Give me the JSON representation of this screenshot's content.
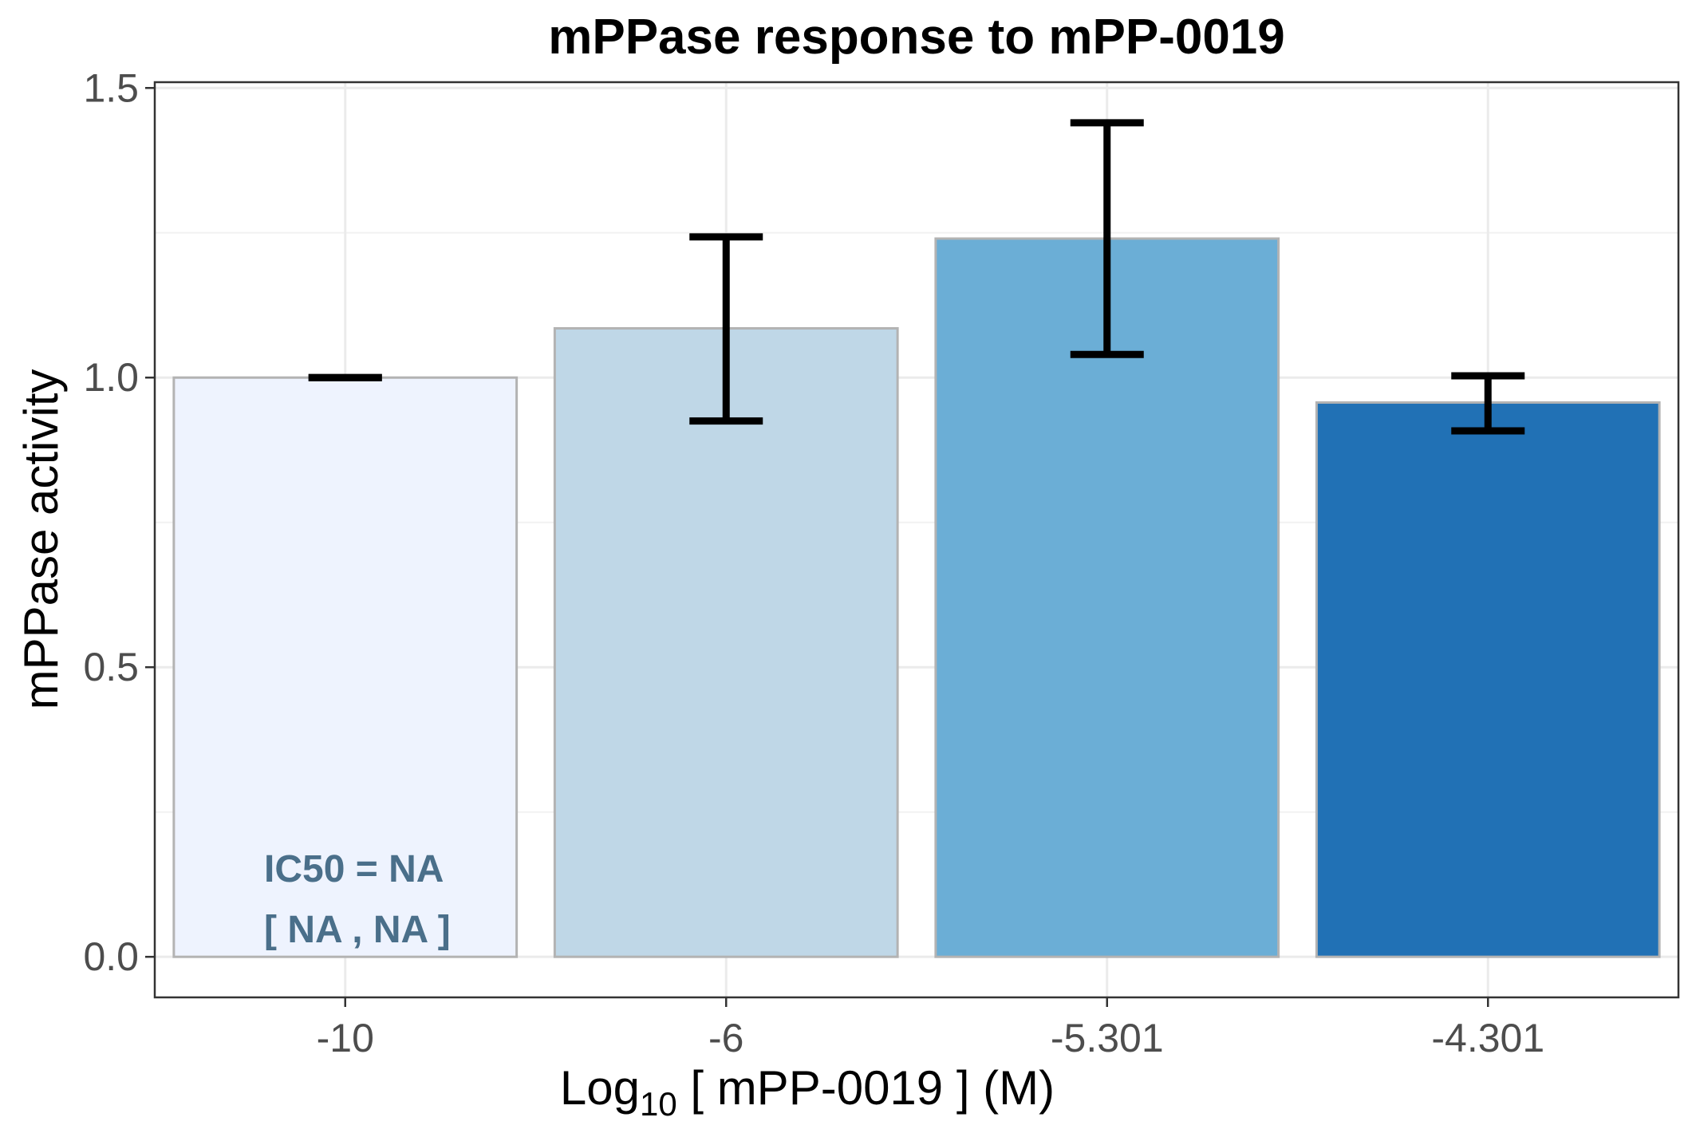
{
  "chart_data": {
    "type": "bar",
    "title": "mPPase response to mPP-0019",
    "xlabel": {
      "prefix": "Log",
      "subscript": "10",
      "suffix": " [ mPP-0019 ] (M)"
    },
    "ylabel": "mPPase activity",
    "categories": [
      "-10",
      "-6",
      "-5.301",
      "-4.301"
    ],
    "values": [
      1.0,
      1.085,
      1.24,
      0.957
    ],
    "error_low": [
      1.0,
      0.925,
      1.04,
      0.908
    ],
    "error_high": [
      1.0,
      1.243,
      1.44,
      1.003
    ],
    "bar_colors": [
      "#eef3fe",
      "#bfd7e7",
      "#6baed6",
      "#2171b5"
    ],
    "ylim": [
      -0.07,
      1.51
    ],
    "yticks": [
      0.0,
      0.5,
      1.0,
      1.5
    ],
    "ytick_labels": [
      "0.0",
      "0.5",
      "1.0",
      "1.5"
    ],
    "grid": true,
    "legend": "none",
    "annotations": [
      "IC50 = NA",
      "[ NA , NA ]"
    ],
    "annotation_color": "#4a6f8a"
  }
}
